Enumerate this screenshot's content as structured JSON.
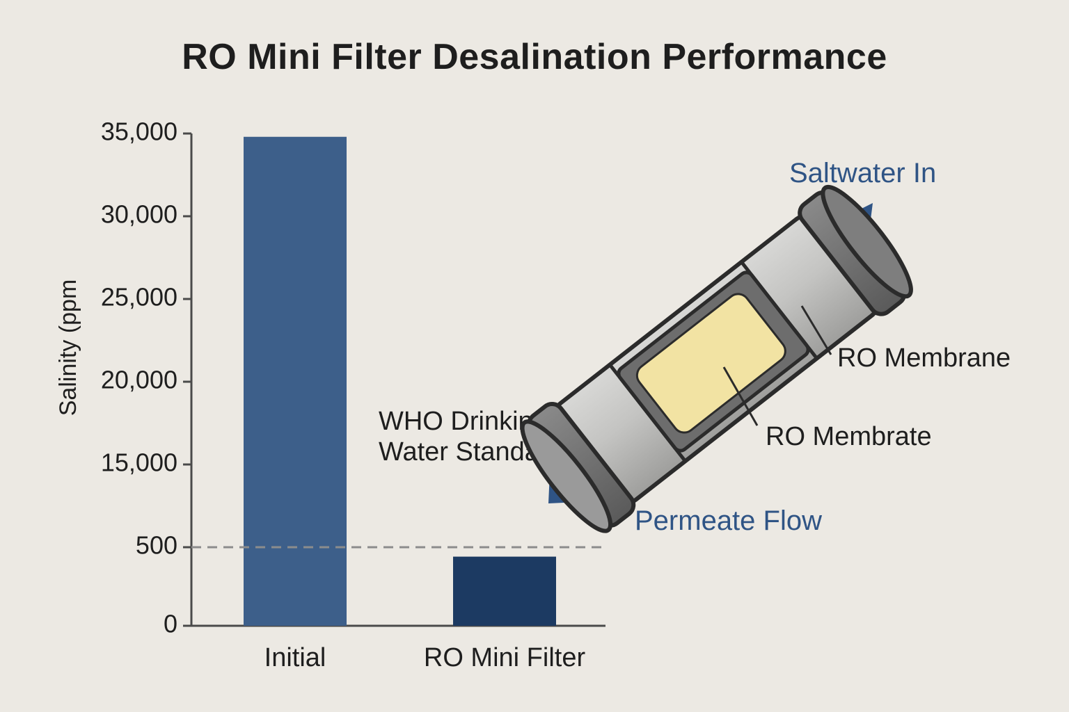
{
  "chart_data": {
    "type": "bar",
    "title": "RO Mini Filter Desalination Performance",
    "ylabel": "Salinity (ppm",
    "xlabel": "",
    "categories": [
      "Initial",
      "RO Mini Filter"
    ],
    "values": [
      34800,
      440
    ],
    "bar_colors": [
      "#3d5f8a",
      "#1c3a62"
    ],
    "y_ticks": [
      {
        "value": 0,
        "label": "0"
      },
      {
        "value": 500,
        "label": "500"
      },
      {
        "value": 15000,
        "label": "15,000"
      },
      {
        "value": 20000,
        "label": "20,000"
      },
      {
        "value": 25000,
        "label": "25,000"
      },
      {
        "value": 30000,
        "label": "30,000"
      },
      {
        "value": 35000,
        "label": "35,000"
      }
    ],
    "ylim": [
      0,
      35000
    ],
    "grid": false,
    "reference_line": {
      "value": 500,
      "label": "WHO Drinking Water Standard",
      "style": "dashed",
      "color": "#8c8c8c"
    }
  },
  "annotations": {
    "who_line1": "WHO Drinking",
    "who_line2": "Water Standard",
    "saltwater_in": "Saltwater In",
    "permeate_flow": "Permeate Flow",
    "ro_membrane": "RO Membrane",
    "ro_membrate": "RO Membrate"
  },
  "colors": {
    "background": "#ece9e3",
    "accent_blue": "#2f5485",
    "membrane_yellow": "#f2e3a3",
    "housing_gray": "#b9b9b9"
  }
}
